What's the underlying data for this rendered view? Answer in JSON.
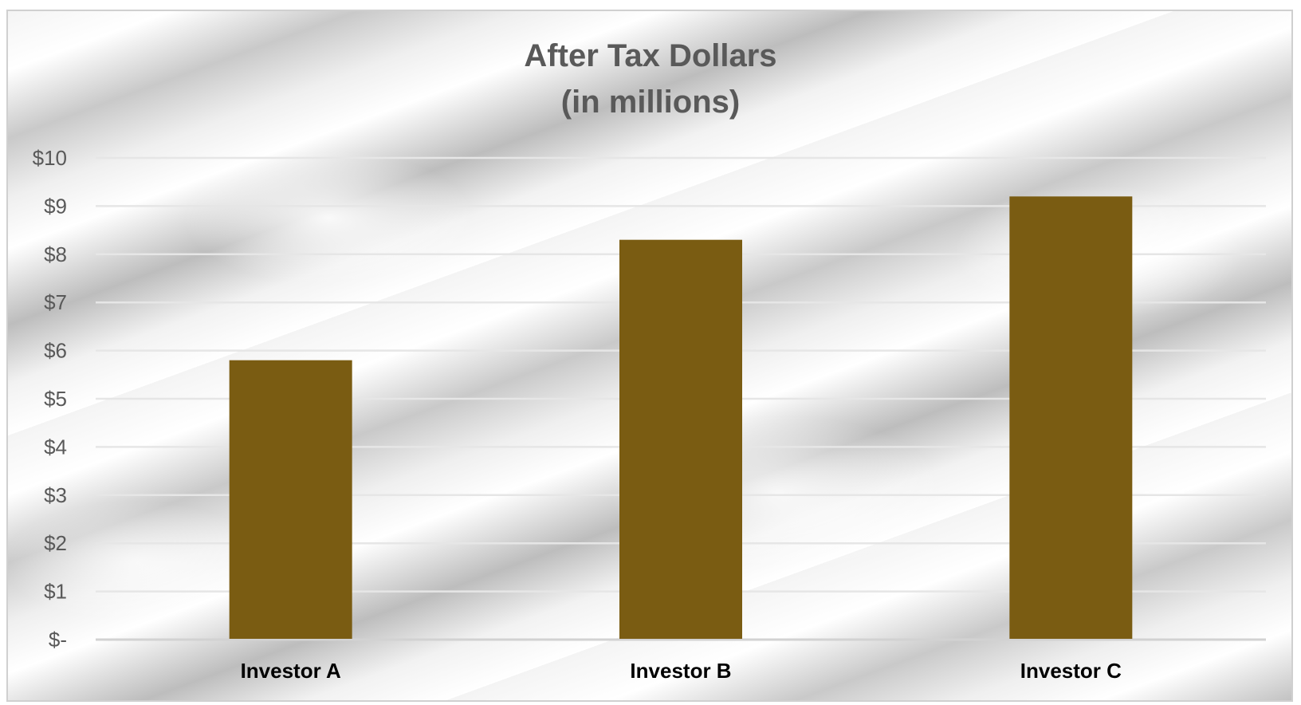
{
  "chart_data": {
    "type": "bar",
    "title": "After Tax Dollars",
    "subtitle": "(in millions)",
    "categories": [
      "Investor A",
      "Investor B",
      "Investor C"
    ],
    "values": [
      5.8,
      8.3,
      9.2
    ],
    "ylim": [
      0,
      10
    ],
    "yticks": [
      0,
      1,
      2,
      3,
      4,
      5,
      6,
      7,
      8,
      9,
      10
    ],
    "ytick_labels": [
      "$-",
      "$1",
      "$2",
      "$3",
      "$4",
      "$5",
      "$6",
      "$7",
      "$8",
      "$9",
      "$10"
    ],
    "xlabel": "",
    "ylabel": "",
    "grid": true,
    "legend": "none",
    "bar_color": "#7a5c12"
  }
}
